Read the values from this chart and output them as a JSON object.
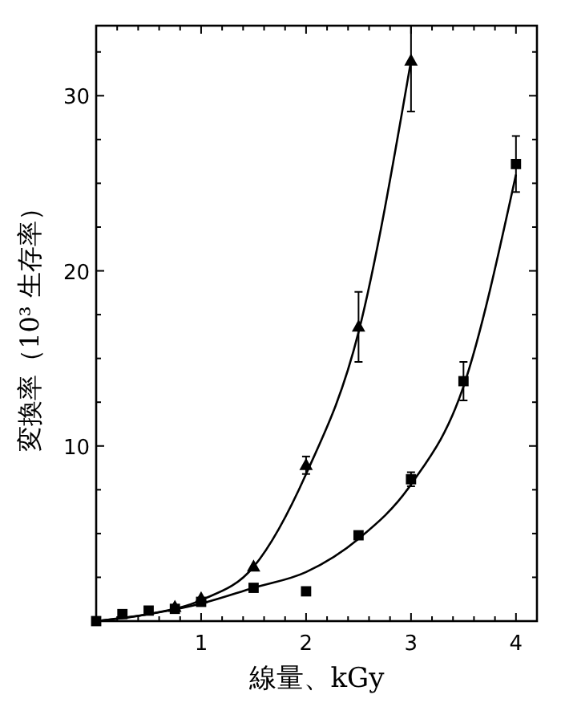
{
  "chart_data": {
    "type": "scatter",
    "xlabel": "線量、kGy",
    "ylabel": "変換率（10³ 生存率）",
    "xlim": [
      0,
      4.2
    ],
    "ylim": [
      0,
      34
    ],
    "xticks": [
      {
        "value": 0.2,
        "label": null
      },
      {
        "value": 0.4,
        "label": null
      },
      {
        "value": 0.6,
        "label": null
      },
      {
        "value": 0.8,
        "label": null
      },
      1,
      {
        "value": 1.2,
        "label": null
      },
      {
        "value": 1.4,
        "label": null
      },
      {
        "value": 1.6,
        "label": null
      },
      {
        "value": 1.8,
        "label": null
      },
      2,
      {
        "value": 2.2,
        "label": null
      },
      {
        "value": 2.4,
        "label": null
      },
      {
        "value": 2.6,
        "label": null
      },
      {
        "value": 2.8,
        "label": null
      },
      3,
      {
        "value": 3.2,
        "label": null
      },
      {
        "value": 3.4,
        "label": null
      },
      {
        "value": 3.6,
        "label": null
      },
      {
        "value": 3.8,
        "label": null
      },
      4
    ],
    "yticks": [
      {
        "value": 2.5,
        "label": null
      },
      {
        "value": 5,
        "label": null
      },
      {
        "value": 7.5,
        "label": null
      },
      10,
      {
        "value": 12.5,
        "label": null
      },
      {
        "value": 15,
        "label": null
      },
      {
        "value": 17.5,
        "label": null
      },
      20,
      {
        "value": 22.5,
        "label": null
      },
      {
        "value": 25,
        "label": null
      },
      {
        "value": 27.5,
        "label": null
      },
      30,
      {
        "value": 32.5,
        "label": null
      }
    ],
    "grid": false,
    "series": [
      {
        "type": "line",
        "marker": "none",
        "color": "#000000",
        "x": [
          0,
          0.5,
          1,
          1.5,
          2,
          2.5,
          3
        ],
        "values": [
          0,
          0.4,
          1.2,
          3.1,
          8.4,
          16.5,
          32
        ]
      },
      {
        "type": "line",
        "marker": "none",
        "color": "#000000",
        "x": [
          0,
          0.5,
          1,
          1.5,
          2,
          2.5,
          3,
          3.5,
          4
        ],
        "values": [
          0,
          0.4,
          1.0,
          1.9,
          2.8,
          4.7,
          7.8,
          13.4,
          25.5
        ]
      },
      {
        "marker": "square",
        "color": "#000000",
        "x": [
          0,
          0.25,
          0.5,
          0.75,
          1,
          1.5,
          2,
          2.5,
          3,
          3.5,
          4
        ],
        "values": [
          0,
          0.4,
          0.6,
          0.7,
          1.1,
          1.9,
          1.7,
          4.9,
          8.1,
          13.7,
          26.1
        ],
        "errors": [
          null,
          null,
          null,
          null,
          null,
          null,
          null,
          null,
          0.4,
          1.1,
          1.6
        ]
      },
      {
        "marker": "triangle",
        "color": "#000000",
        "x": [
          0.75,
          1,
          1.5,
          2,
          2.5,
          3
        ],
        "values": [
          0.8,
          1.3,
          3.1,
          8.9,
          16.8,
          32
        ],
        "errors": [
          null,
          null,
          null,
          0.5,
          2,
          [
            29.1,
            34
          ]
        ]
      }
    ]
  }
}
